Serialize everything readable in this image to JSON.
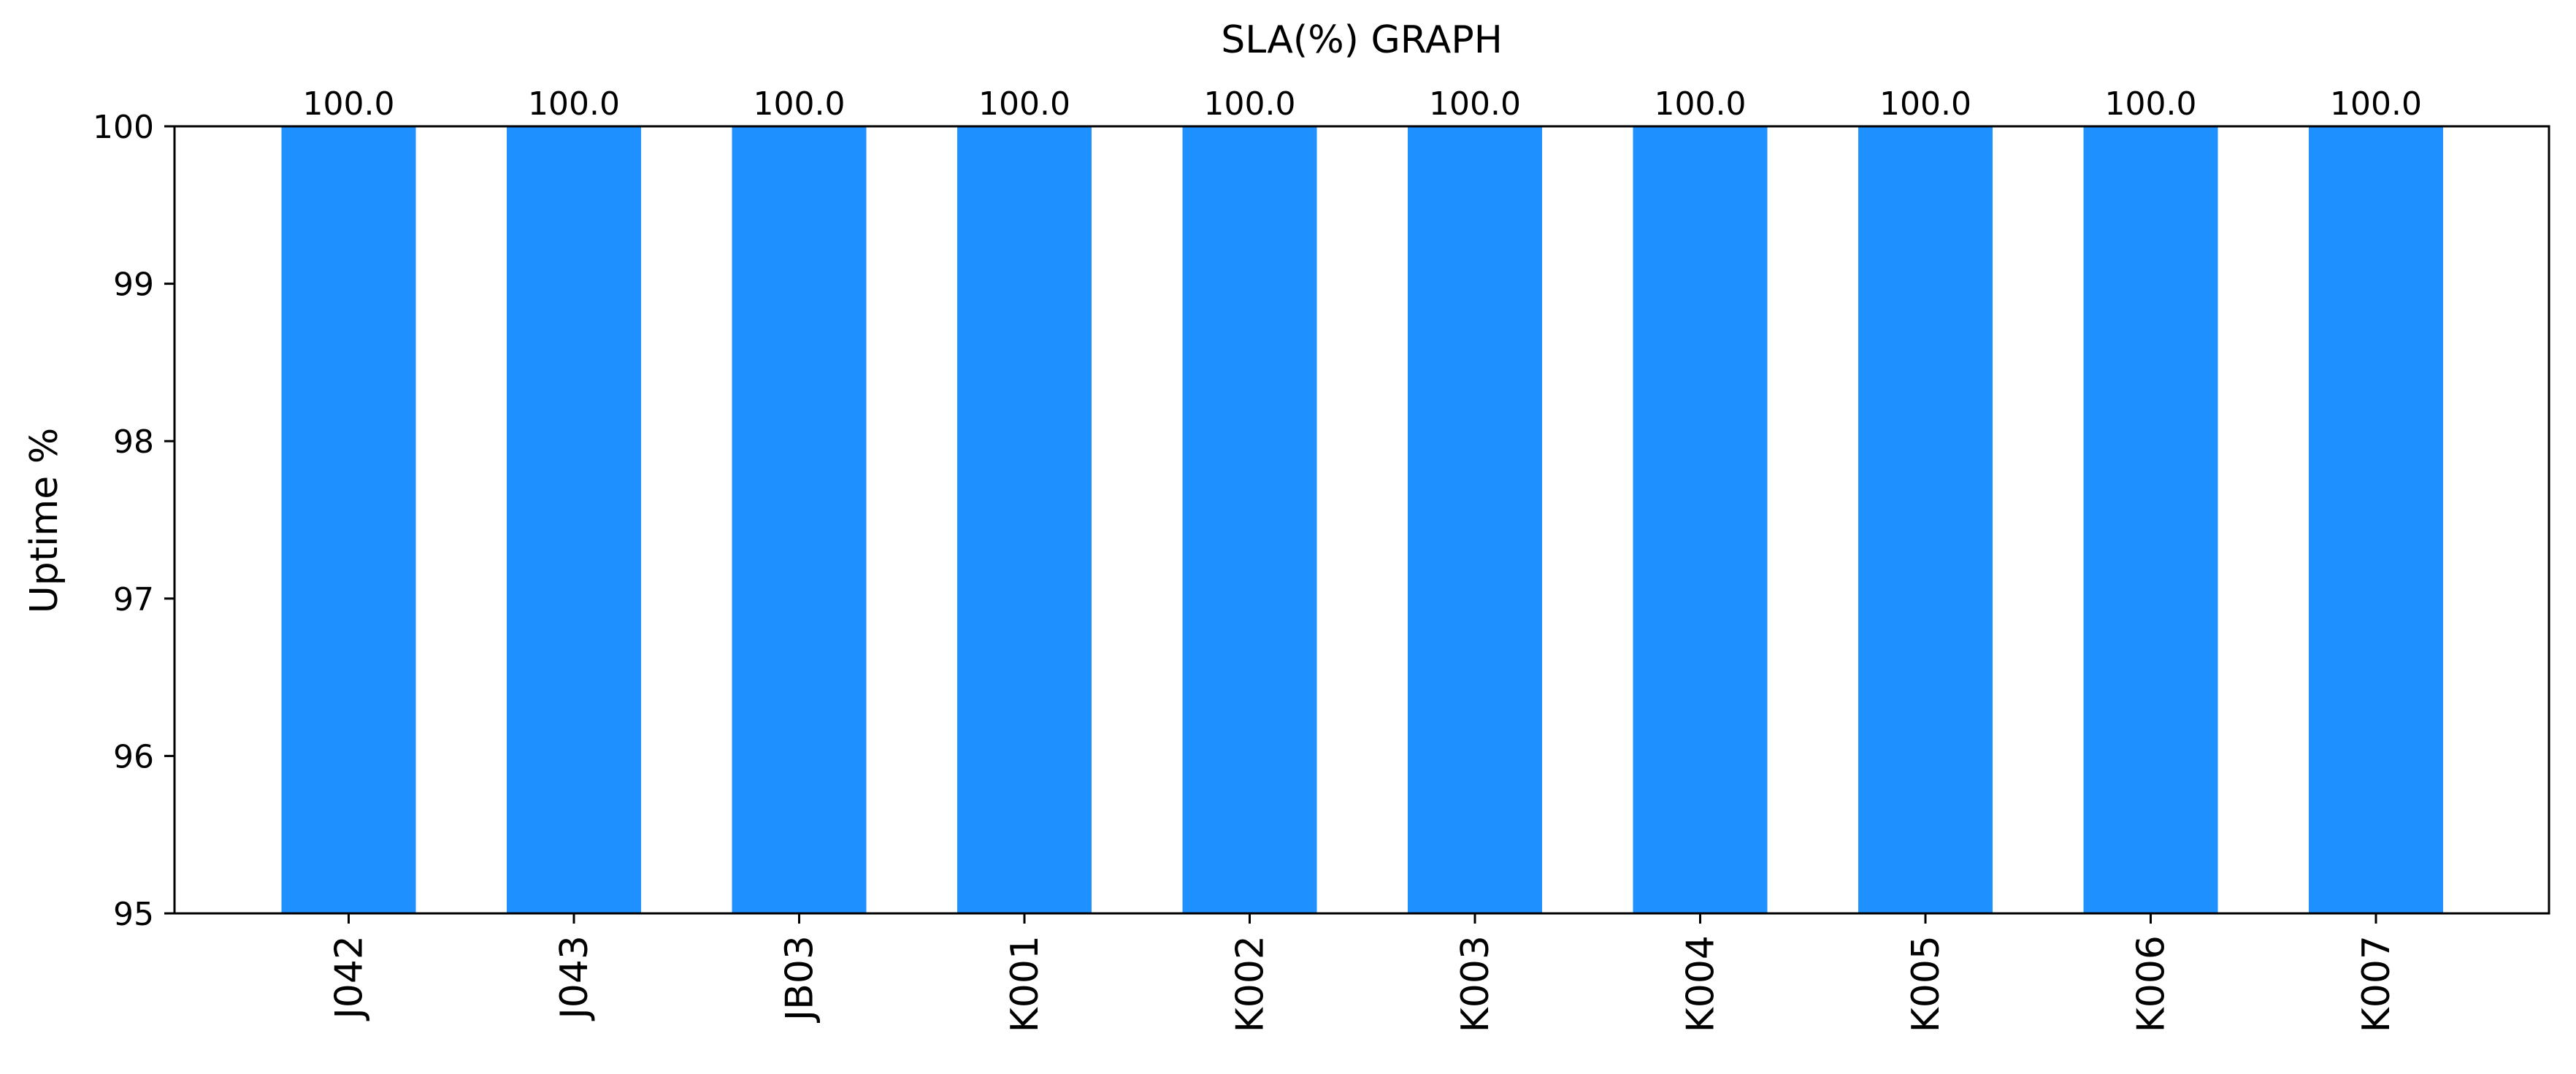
{
  "chart_data": {
    "type": "bar",
    "title": "SLA(%) GRAPH",
    "xlabel": "",
    "ylabel": "Uptime %",
    "categories": [
      "J042",
      "J043",
      "JB03",
      "K001",
      "K002",
      "K003",
      "K004",
      "K005",
      "K006",
      "K007"
    ],
    "values": [
      100.0,
      100.0,
      100.0,
      100.0,
      100.0,
      100.0,
      100.0,
      100.0,
      100.0,
      100.0
    ],
    "data_labels": [
      "100.0",
      "100.0",
      "100.0",
      "100.0",
      "100.0",
      "100.0",
      "100.0",
      "100.0",
      "100.0",
      "100.0"
    ],
    "ylim": [
      95,
      100
    ],
    "yticks": [
      "95",
      "96",
      "97",
      "98",
      "99",
      "100"
    ],
    "grid": false,
    "legend": "none",
    "bar_color": "#1e90ff",
    "axis_color": "#000000"
  }
}
